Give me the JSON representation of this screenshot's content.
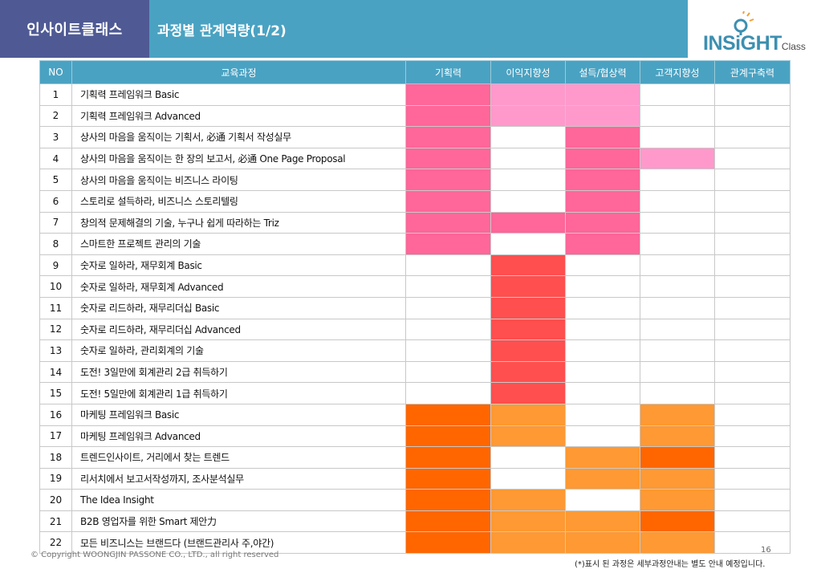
{
  "header": {
    "brand": "인사이트클래스",
    "title": "과정별 관계역량(1/2)"
  },
  "logo": {
    "main": "INSiGHT",
    "sub": "Class"
  },
  "colors": {
    "pink_dark": "#ff6699",
    "pink_light": "#ff99cc",
    "red": "#ff4f4f",
    "orange_dark": "#ff6600",
    "orange_light": "#ff9933",
    "header_bg": "#4aa2c2"
  },
  "table": {
    "headers": [
      "NO",
      "교육과정",
      "기획력",
      "이익지향성",
      "설득/협상력",
      "고객지향성",
      "관계구축력"
    ],
    "rows": [
      {
        "no": "1",
        "name": "기획력 프레임워크 Basic",
        "cells": [
          "pink_dark",
          "pink_light",
          "pink_light",
          "",
          ""
        ]
      },
      {
        "no": "2",
        "name": "기획력 프레임워크 Advanced",
        "cells": [
          "pink_dark",
          "pink_light",
          "pink_light",
          "",
          ""
        ]
      },
      {
        "no": "3",
        "name": "상사의 마음을 움직이는 기획서, 必通 기획서 작성실무",
        "cells": [
          "pink_dark",
          "",
          "pink_dark",
          "",
          ""
        ]
      },
      {
        "no": "4",
        "name": "상사의 마음을 움직이는 한 장의 보고서, 必通 One Page Proposal",
        "cells": [
          "pink_dark",
          "",
          "pink_dark",
          "pink_light",
          ""
        ]
      },
      {
        "no": "5",
        "name": "상사의 마음을 움직이는 비즈니스 라이팅",
        "cells": [
          "pink_dark",
          "",
          "pink_dark",
          "",
          ""
        ]
      },
      {
        "no": "6",
        "name": "스토리로 설득하라, 비즈니스 스토리텔링",
        "cells": [
          "pink_dark",
          "",
          "pink_dark",
          "",
          ""
        ]
      },
      {
        "no": "7",
        "name": "창의적 문제해결의 기술, 누구나 쉽게 따라하는 Triz",
        "cells": [
          "pink_dark",
          "pink_dark",
          "pink_dark",
          "",
          ""
        ]
      },
      {
        "no": "8",
        "name": "스마트한 프로젝트 관리의 기술",
        "cells": [
          "pink_dark",
          "",
          "pink_dark",
          "",
          ""
        ]
      },
      {
        "no": "9",
        "name": "숫자로 일하라, 재무회계 Basic",
        "cells": [
          "",
          "red",
          "",
          "",
          ""
        ]
      },
      {
        "no": "10",
        "name": "숫자로 일하라, 재무회계 Advanced",
        "cells": [
          "",
          "red",
          "",
          "",
          ""
        ]
      },
      {
        "no": "11",
        "name": "숫자로 리드하라, 재무리더십 Basic",
        "cells": [
          "",
          "red",
          "",
          "",
          ""
        ]
      },
      {
        "no": "12",
        "name": "숫자로 리드하라, 재무리더십 Advanced",
        "cells": [
          "",
          "red",
          "",
          "",
          ""
        ]
      },
      {
        "no": "13",
        "name": "숫자로 일하라, 관리회계의 기술",
        "cells": [
          "",
          "red",
          "",
          "",
          ""
        ]
      },
      {
        "no": "14",
        "name": "도전! 3일만에 회계관리 2급 취득하기",
        "cells": [
          "",
          "red",
          "",
          "",
          ""
        ]
      },
      {
        "no": "15",
        "name": "도전! 5일만에 회계관리 1급 취득하기",
        "cells": [
          "",
          "red",
          "",
          "",
          ""
        ]
      },
      {
        "no": "16",
        "name": "마케팅 프레임워크 Basic",
        "cells": [
          "orange_dark",
          "orange_light",
          "",
          "orange_light",
          ""
        ]
      },
      {
        "no": "17",
        "name": "마케팅 프레임워크 Advanced",
        "cells": [
          "orange_dark",
          "orange_light",
          "",
          "orange_light",
          ""
        ]
      },
      {
        "no": "18",
        "name": "트렌드인사이트, 거리에서 찾는 트렌드",
        "cells": [
          "orange_dark",
          "",
          "orange_light",
          "orange_dark",
          ""
        ]
      },
      {
        "no": "19",
        "name": "리서치에서 보고서작성까지, 조사분석실무",
        "cells": [
          "orange_dark",
          "",
          "orange_light",
          "orange_light",
          ""
        ]
      },
      {
        "no": "20",
        "name": "The Idea Insight",
        "cells": [
          "orange_dark",
          "orange_light",
          "",
          "orange_light",
          ""
        ]
      },
      {
        "no": "21",
        "name": "B2B 영업자를 위한 Smart 제안力",
        "cells": [
          "orange_dark",
          "orange_light",
          "orange_light",
          "orange_dark",
          ""
        ]
      },
      {
        "no": "22",
        "name": "모든 비즈니스는 브랜드다 (브랜드관리사 주,야간)",
        "cells": [
          "orange_dark",
          "orange_light",
          "orange_light",
          "orange_light",
          ""
        ]
      }
    ]
  },
  "footer": {
    "copyright": "© Copyright WOONGJIN PASSONE CO., LTD., all right reserved",
    "page": "16",
    "note": "(*)표시 된 과정은 세부과정안내는 별도 안내 예정입니다."
  }
}
